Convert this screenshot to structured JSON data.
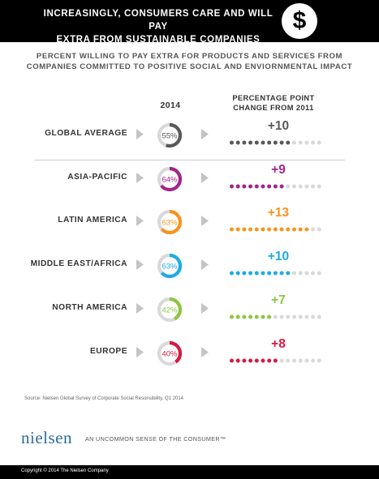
{
  "header": {
    "title_line1": "INCREASINGLY, CONSUMERS CARE AND WILL PAY",
    "title_line2": "EXTRA FROM SUSTAINABLE COMPANIES",
    "icon_glyph": "$",
    "icon": "dollar-sign-icon"
  },
  "subtitle": {
    "line1": "PERCENT WILLING TO PAY EXTRA FOR PRODUCTS AND SERVICES FROM",
    "line2": "COMPANIES COMMITTED TO POSITIVE SOCIAL AND ENVIORNMENTAL IMPACT"
  },
  "columns": {
    "year": "2014",
    "change_line1": "PERCENTAGE POINT",
    "change_line2": "CHANGE FROM 2011"
  },
  "chart_data": {
    "type": "table",
    "title": "PERCENT WILLING TO PAY EXTRA FOR PRODUCTS AND SERVICES FROM COMPANIES COMMITTED TO POSITIVE SOCIAL AND ENVIORNMENTAL IMPACT",
    "columns": [
      "2014",
      "PERCENTAGE POINT CHANGE FROM 2011"
    ],
    "dot_total": 15,
    "rows": [
      {
        "region": "GLOBAL AVERAGE",
        "pct": 55,
        "pct_label": "55%",
        "change": 10,
        "change_label": "+10",
        "color": "#58595b"
      },
      {
        "region": "ASIA-PACIFIC",
        "pct": 64,
        "pct_label": "64%",
        "change": 9,
        "change_label": "+9",
        "color": "#a3238e"
      },
      {
        "region": "LATIN AMERICA",
        "pct": 63,
        "pct_label": "63%",
        "change": 13,
        "change_label": "+13",
        "color": "#f7941d"
      },
      {
        "region": "MIDDLE EAST/AFRICA",
        "pct": 63,
        "pct_label": "63%",
        "change": 10,
        "change_label": "+10",
        "color": "#1cace4"
      },
      {
        "region": "NORTH AMERICA",
        "pct": 42,
        "pct_label": "42%",
        "change": 7,
        "change_label": "+7",
        "color": "#8dc63f"
      },
      {
        "region": "EUROPE",
        "pct": 40,
        "pct_label": "40%",
        "change": 8,
        "change_label": "+8",
        "color": "#d7193f"
      }
    ]
  },
  "colors": {
    "track": "#d9d9d9",
    "inactive_dot": "#d9d9d9",
    "triangle": "#c4c4c4"
  },
  "source": "Source: Nielsen Global Survey of Corporate Social Resonsibility, Q1 2014",
  "footer": {
    "logo_text": "nielsen",
    "tagline": "AN UNCOMMON SENSE OF THE CONSUMER™",
    "copyright": "Copyright © 2014 The Nielsen Company"
  }
}
